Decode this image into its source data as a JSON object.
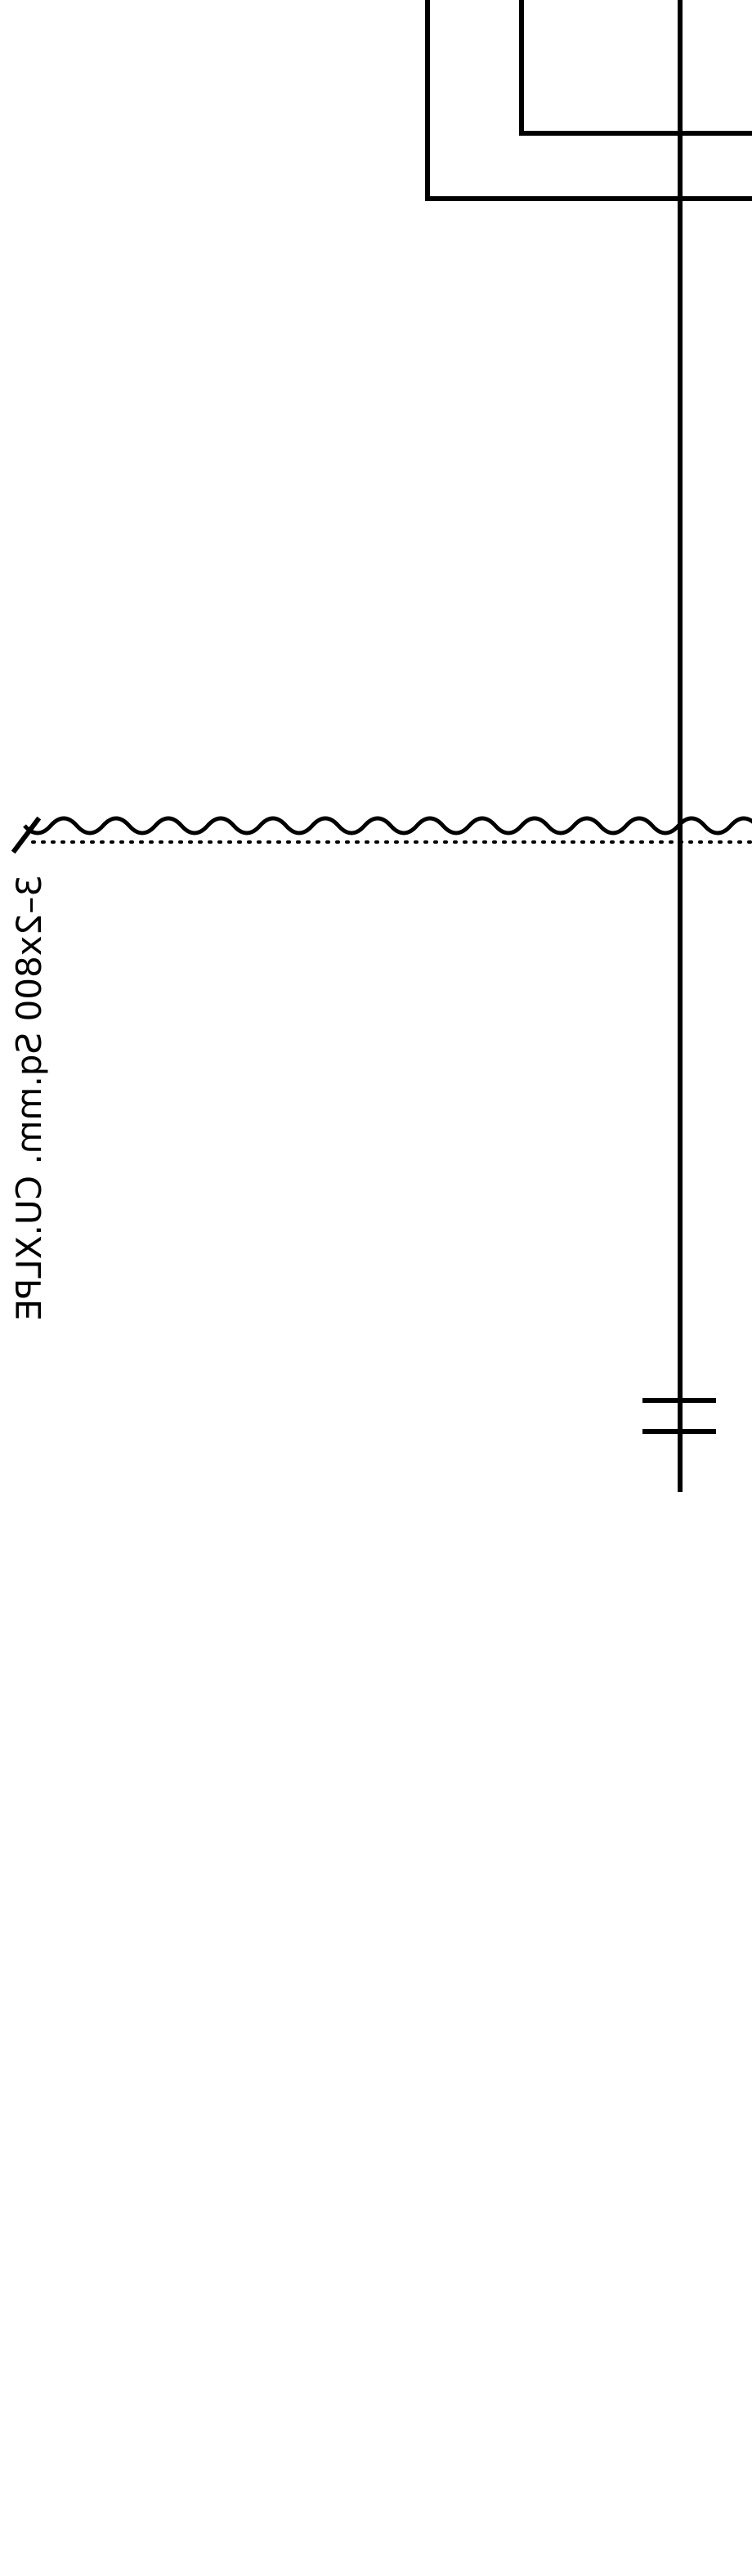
{
  "cable_label": "3–2x800 Sq.mm. CU.XLPE",
  "colors": {
    "line": "#000000",
    "background": "#ffffff"
  }
}
